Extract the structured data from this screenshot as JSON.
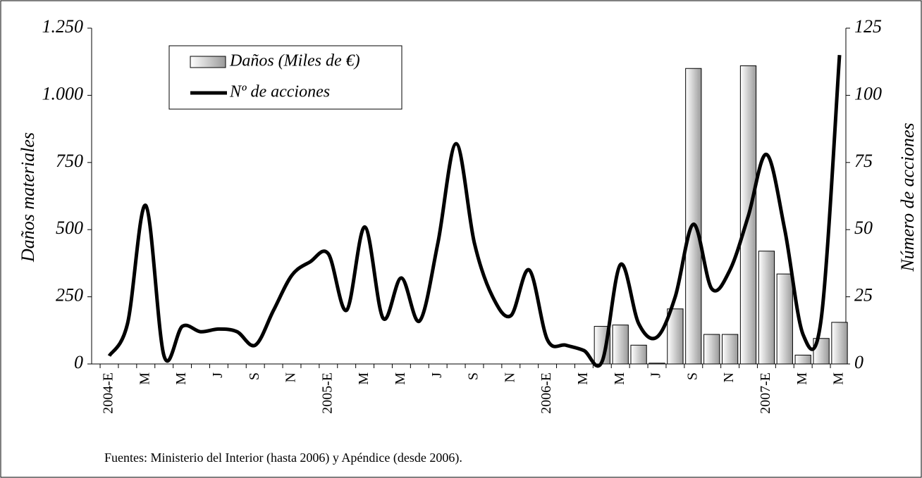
{
  "chart_data": {
    "type": "bar_line",
    "y_label": "Daños materiales",
    "y2_label": "Número de acciones",
    "source": "Fuentes: Ministerio del Interior (hasta 2006) y Apéndice (desde 2006).",
    "categories": [
      "2004-E",
      null,
      "M",
      null,
      "M",
      null,
      "J",
      null,
      "S",
      null,
      "N",
      null,
      "2005-E",
      null,
      "M",
      null,
      "M",
      null,
      "J",
      null,
      "S",
      null,
      "N",
      null,
      "2006-E",
      null,
      "M",
      null,
      "M",
      null,
      "J",
      null,
      "S",
      null,
      "N",
      null,
      "2007-E",
      null,
      "M",
      null,
      "M"
    ],
    "series": [
      {
        "name": "Daños (Miles de €)",
        "kind": "bar",
        "color": "#9a9a9a",
        "values": [
          null,
          null,
          null,
          null,
          null,
          null,
          null,
          null,
          null,
          null,
          null,
          null,
          null,
          null,
          null,
          null,
          null,
          null,
          null,
          null,
          null,
          null,
          null,
          null,
          null,
          null,
          null,
          140,
          145,
          70,
          3,
          205,
          1100,
          110,
          110,
          1110,
          420,
          335,
          33,
          95,
          155
        ]
      },
      {
        "name": "Nº de acciones",
        "kind": "line",
        "axis": "y2",
        "color": "#000000",
        "values": [
          3,
          15,
          59,
          3,
          14,
          12,
          13,
          12,
          7,
          20,
          33,
          38,
          41,
          20,
          51,
          17,
          32,
          16,
          45,
          82,
          45,
          25,
          18,
          35,
          9,
          7,
          5,
          1,
          37,
          15,
          10,
          25,
          52,
          28,
          35,
          55,
          78,
          50,
          11,
          17,
          115
        ]
      }
    ],
    "ylim": [
      0,
      1250
    ],
    "yticks": [
      0,
      250,
      500,
      750,
      {
        "value": 1000,
        "label": "1.000"
      },
      {
        "value": 1250,
        "label": "1.250"
      }
    ],
    "y2lim": [
      0,
      125
    ],
    "y2ticks": [
      0,
      25,
      50,
      75,
      100,
      125
    ]
  }
}
